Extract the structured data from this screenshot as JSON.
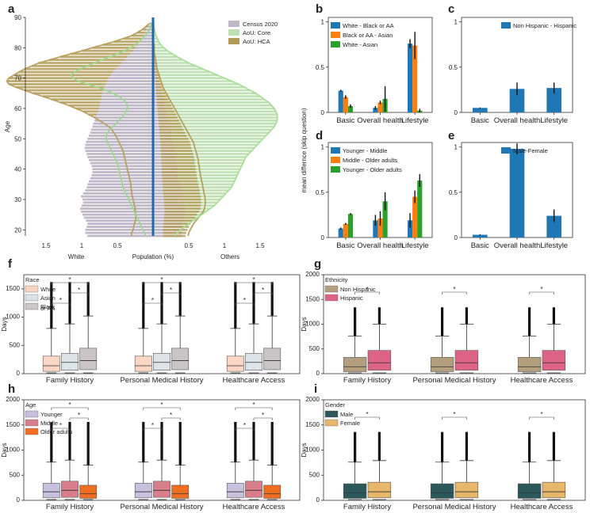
{
  "colors": {
    "census": "#c0b8c8",
    "core": "#bfe0b4",
    "hca": "#b39b55",
    "divider": "#2366b0",
    "blue": "#1f77b4",
    "orange": "#ff7f0e",
    "green": "#2ca02c",
    "race": [
      "#fbd6c4",
      "#dde3e6",
      "#c9c4c6"
    ],
    "ethnicity": [
      "#b39e7d",
      "#dd6487"
    ],
    "age": [
      "#c8c1de",
      "#d97f8c",
      "#ee6f22"
    ],
    "gender": [
      "#2c585c",
      "#e8b86a"
    ]
  },
  "panel_labels": [
    "a",
    "b",
    "c",
    "d",
    "e",
    "f",
    "g",
    "h",
    "i"
  ],
  "chart_data": [
    {
      "id": "a",
      "type": "bar",
      "orientation": "horizontal-pyramid",
      "ylabel": "Age",
      "xlabel": "Population (%)",
      "left_label": "White",
      "right_label": "Others",
      "yticks": [
        20,
        30,
        40,
        50,
        60,
        70,
        80,
        90
      ],
      "ylim": [
        18,
        90
      ],
      "xticks": [
        "1.5",
        "1",
        "0.5",
        "0.5",
        "1",
        "1.5"
      ],
      "xtick_values": [
        -1.5,
        -1,
        -0.5,
        0.5,
        1,
        1.5
      ],
      "xlim": [
        -2.1,
        2.1
      ],
      "legend": [
        "Census 2020",
        "AoU: Core",
        "AoU: HCA"
      ],
      "ages": [
        18,
        19,
        20,
        21,
        22,
        23,
        24,
        25,
        26,
        27,
        28,
        29,
        30,
        31,
        32,
        33,
        34,
        35,
        36,
        37,
        38,
        39,
        40,
        41,
        42,
        43,
        44,
        45,
        46,
        47,
        48,
        49,
        50,
        51,
        52,
        53,
        54,
        55,
        56,
        57,
        58,
        59,
        60,
        61,
        62,
        63,
        64,
        65,
        66,
        67,
        68,
        69,
        70,
        71,
        72,
        73,
        74,
        75,
        76,
        77,
        78,
        79,
        80,
        81,
        82,
        83,
        84,
        85,
        86,
        87,
        88
      ],
      "census_left": [
        0.92,
        0.95,
        0.95,
        0.93,
        0.92,
        0.94,
        0.97,
        0.99,
        1.01,
        1.02,
        1.0,
        0.98,
        0.99,
        1.01,
        0.98,
        0.95,
        0.93,
        0.92,
        0.9,
        0.88,
        0.86,
        0.85,
        0.85,
        0.86,
        0.88,
        0.9,
        0.92,
        0.93,
        0.95,
        0.96,
        0.95,
        0.94,
        0.92,
        0.9,
        0.88,
        0.87,
        0.85,
        0.84,
        0.82,
        0.8,
        0.79,
        0.77,
        0.76,
        0.75,
        0.74,
        0.73,
        0.72,
        0.71,
        0.7,
        0.68,
        0.66,
        0.64,
        0.62,
        0.59,
        0.56,
        0.52,
        0.48,
        0.44,
        0.4,
        0.36,
        0.32,
        0.28,
        0.25,
        0.22,
        0.19,
        0.16,
        0.13,
        0.11,
        0.09,
        0.07,
        0.05
      ],
      "census_right": [
        0.4,
        0.4,
        0.4,
        0.41,
        0.42,
        0.43,
        0.44,
        0.45,
        0.46,
        0.46,
        0.45,
        0.44,
        0.43,
        0.42,
        0.41,
        0.4,
        0.39,
        0.38,
        0.37,
        0.36,
        0.35,
        0.34,
        0.34,
        0.34,
        0.33,
        0.33,
        0.32,
        0.32,
        0.31,
        0.3,
        0.3,
        0.29,
        0.28,
        0.27,
        0.26,
        0.25,
        0.24,
        0.23,
        0.22,
        0.21,
        0.2,
        0.19,
        0.18,
        0.17,
        0.16,
        0.15,
        0.14,
        0.13,
        0.12,
        0.11,
        0.1,
        0.09,
        0.08,
        0.07,
        0.06,
        0.05,
        0.05,
        0.04,
        0.04,
        0.03,
        0.03,
        0.02,
        0.02,
        0.02,
        0.01,
        0.01,
        0.01,
        0.01,
        0.01,
        0.0,
        0.0
      ],
      "hca_left": [
        0.3,
        0.3,
        0.28,
        0.27,
        0.26,
        0.25,
        0.24,
        0.24,
        0.25,
        0.25,
        0.26,
        0.27,
        0.28,
        0.29,
        0.3,
        0.3,
        0.31,
        0.31,
        0.32,
        0.33,
        0.34,
        0.35,
        0.36,
        0.37,
        0.38,
        0.39,
        0.4,
        0.41,
        0.42,
        0.44,
        0.46,
        0.48,
        0.5,
        0.52,
        0.55,
        0.58,
        0.62,
        0.68,
        0.75,
        0.82,
        0.9,
        0.98,
        1.08,
        1.18,
        1.3,
        1.42,
        1.55,
        1.68,
        1.8,
        1.92,
        2.02,
        2.05,
        2.02,
        1.95,
        1.88,
        1.8,
        1.7,
        1.6,
        1.45,
        1.3,
        1.15,
        1.0,
        0.85,
        0.7,
        0.55,
        0.42,
        0.3,
        0.22,
        0.15,
        0.1,
        0.05
      ],
      "hca_right": [
        0.35,
        0.36,
        0.38,
        0.4,
        0.42,
        0.45,
        0.48,
        0.51,
        0.54,
        0.56,
        0.57,
        0.58,
        0.58,
        0.58,
        0.57,
        0.57,
        0.56,
        0.56,
        0.55,
        0.55,
        0.54,
        0.54,
        0.53,
        0.53,
        0.52,
        0.52,
        0.51,
        0.5,
        0.49,
        0.48,
        0.47,
        0.46,
        0.44,
        0.42,
        0.4,
        0.38,
        0.36,
        0.34,
        0.32,
        0.3,
        0.28,
        0.26,
        0.24,
        0.22,
        0.2,
        0.18,
        0.16,
        0.14,
        0.12,
        0.1,
        0.09,
        0.08,
        0.07,
        0.06,
        0.05,
        0.04,
        0.03,
        0.03,
        0.02,
        0.02,
        0.01,
        0.01,
        0.01,
        0.01,
        0.0,
        0.0,
        0.0,
        0.0,
        0.0,
        0.0,
        0.0
      ],
      "core_left": [
        0.1,
        0.12,
        0.14,
        0.16,
        0.18,
        0.2,
        0.22,
        0.24,
        0.26,
        0.28,
        0.3,
        0.32,
        0.34,
        0.36,
        0.38,
        0.4,
        0.42,
        0.43,
        0.44,
        0.45,
        0.46,
        0.47,
        0.48,
        0.49,
        0.5,
        0.52,
        0.54,
        0.56,
        0.58,
        0.6,
        0.62,
        0.64,
        0.66,
        0.66,
        0.64,
        0.6,
        0.56,
        0.52,
        0.48,
        0.44,
        0.4,
        0.38,
        0.36,
        0.36,
        0.38,
        0.42,
        0.48,
        0.56,
        0.66,
        0.78,
        0.92,
        1.05,
        1.12,
        1.15,
        1.1,
        1.02,
        0.92,
        0.82,
        0.72,
        0.6,
        0.5,
        0.4,
        0.32,
        0.25,
        0.2,
        0.15,
        0.11,
        0.08,
        0.05,
        0.03,
        0.02
      ],
      "core_right": [
        0.3,
        0.34,
        0.38,
        0.44,
        0.5,
        0.56,
        0.62,
        0.68,
        0.74,
        0.8,
        0.86,
        0.9,
        0.94,
        0.98,
        1.02,
        1.06,
        1.1,
        1.12,
        1.14,
        1.16,
        1.18,
        1.2,
        1.22,
        1.24,
        1.26,
        1.28,
        1.3,
        1.34,
        1.38,
        1.42,
        1.46,
        1.5,
        1.54,
        1.58,
        1.62,
        1.66,
        1.7,
        1.72,
        1.74,
        1.74,
        1.74,
        1.72,
        1.7,
        1.66,
        1.62,
        1.56,
        1.5,
        1.44,
        1.36,
        1.28,
        1.2,
        1.1,
        1.0,
        0.9,
        0.8,
        0.7,
        0.6,
        0.5,
        0.42,
        0.34,
        0.27,
        0.2,
        0.15,
        0.11,
        0.08,
        0.06,
        0.04,
        0.03,
        0.02,
        0.01,
        0.01
      ]
    },
    {
      "id": "b",
      "type": "bar",
      "categories": [
        "Basic",
        "Overall health",
        "Lifestyle"
      ],
      "ylim": [
        0,
        1.05
      ],
      "yticks": [
        "0",
        "0.5",
        "1"
      ],
      "series": [
        {
          "name": "White - Black or AA",
          "color": "blue",
          "values": [
            0.24,
            0.05,
            0.76
          ],
          "err": [
            0.01,
            0.02,
            0.05
          ]
        },
        {
          "name": "Black or AA - Asian",
          "color": "orange",
          "values": [
            0.17,
            0.11,
            0.74
          ],
          "err": [
            0.02,
            0.02,
            0.15
          ]
        },
        {
          "name": "White - Asian",
          "color": "green",
          "values": [
            0.07,
            0.15,
            0.02
          ],
          "err": [
            0.02,
            0.14,
            0.02
          ]
        }
      ]
    },
    {
      "id": "c",
      "type": "bar",
      "categories": [
        "Basic",
        "Overall health",
        "Lifestyle"
      ],
      "ylim": [
        0,
        1.05
      ],
      "yticks": [
        "0",
        "0.5",
        "1"
      ],
      "series": [
        {
          "name": "Non Hispanic - Hispanic",
          "color": "blue",
          "values": [
            0.05,
            0.26,
            0.27
          ],
          "err": [
            0.005,
            0.07,
            0.06
          ]
        }
      ]
    },
    {
      "id": "d",
      "type": "bar",
      "categories": [
        "Basic",
        "Overall health",
        "Lifestyle"
      ],
      "ylim": [
        0,
        1.05
      ],
      "yticks": [
        "0",
        "0.5",
        "1"
      ],
      "series": [
        {
          "name": "Younger - Middle",
          "color": "blue",
          "values": [
            0.1,
            0.19,
            0.19
          ],
          "err": [
            0.01,
            0.06,
            0.08
          ]
        },
        {
          "name": "Middle - Older adults",
          "color": "orange",
          "values": [
            0.15,
            0.21,
            0.45
          ],
          "err": [
            0.01,
            0.08,
            0.07
          ]
        },
        {
          "name": "Younger - Older adults",
          "color": "green",
          "values": [
            0.26,
            0.4,
            0.63
          ],
          "err": [
            0.01,
            0.1,
            0.07
          ]
        }
      ]
    },
    {
      "id": "e",
      "type": "bar",
      "categories": [
        "Basic",
        "Overall health",
        "Lifestyle"
      ],
      "ylim": [
        0,
        1.05
      ],
      "yticks": [
        "0",
        "0.5",
        "1"
      ],
      "series": [
        {
          "name": "Male-Female",
          "color": "blue",
          "values": [
            0.03,
            0.98,
            0.24
          ],
          "err": [
            0.005,
            0.06,
            0.07
          ]
        }
      ]
    }
  ],
  "shared_ylabel": "mean differnce (skip question)",
  "box_panels": [
    {
      "id": "f",
      "legend_title": "Race",
      "groups": [
        "White",
        "Asian",
        "Black\nor AA"
      ],
      "group_labels": [
        "White",
        "Asian",
        "Black",
        "or AA"
      ],
      "colorkey": "race",
      "ylabel": "Days",
      "yticks": [
        0,
        500,
        1000,
        1500
      ],
      "ymax": 1750,
      "categories": [
        "Family History",
        "Personal Medical History",
        "Healthcare Access"
      ],
      "stats": [
        [
          40,
          140,
          310,
          800,
          1620
        ],
        [
          60,
          200,
          360,
          880,
          1620
        ],
        [
          70,
          230,
          450,
          1020,
          1620
        ]
      ],
      "sig_marker": "*",
      "brackets": [
        [
          0,
          1
        ],
        [
          1,
          2
        ],
        [
          0,
          2
        ]
      ]
    },
    {
      "id": "g",
      "legend_title": "Ethnicity",
      "groups": [
        "Non Hispanic",
        "Hispanic"
      ],
      "group_labels": [
        "Non Hispanic",
        "Hispanic"
      ],
      "colorkey": "ethnicity",
      "ylabel": "Days",
      "yticks": [
        0,
        500,
        1000,
        1500,
        2000
      ],
      "ymax": 2000,
      "categories": [
        "Family History",
        "Personal Medical History",
        "Healthcare Access"
      ],
      "stats": [
        [
          40,
          140,
          330,
          760,
          1340
        ],
        [
          70,
          220,
          470,
          1000,
          1340
        ]
      ],
      "sig_marker": "*",
      "brackets": [
        [
          0,
          1
        ]
      ]
    },
    {
      "id": "h",
      "legend_title": "Age",
      "groups": [
        "Younger",
        "Middle",
        "Older adults"
      ],
      "group_labels": [
        "Younger",
        "Middle",
        "Older adults"
      ],
      "colorkey": "age",
      "ylabel": "Days",
      "yticks": [
        0,
        500,
        1000,
        1500,
        2000
      ],
      "ymax": 2000,
      "categories": [
        "Family History",
        "Personal Medical History",
        "Healthcare Access"
      ],
      "stats": [
        [
          50,
          170,
          340,
          760,
          1560
        ],
        [
          60,
          200,
          380,
          800,
          1560
        ],
        [
          40,
          130,
          300,
          700,
          1560
        ]
      ],
      "sig_marker": "*",
      "brackets": [
        [
          0,
          1
        ],
        [
          1,
          2
        ],
        [
          0,
          2
        ]
      ]
    },
    {
      "id": "i",
      "legend_title": "Gender",
      "groups": [
        "Male",
        "Female"
      ],
      "group_labels": [
        "Male",
        "Female"
      ],
      "colorkey": "gender",
      "ylabel": "Days",
      "yticks": [
        0,
        500,
        1000,
        1500,
        2000
      ],
      "ymax": 2000,
      "categories": [
        "Family History",
        "Personal Medical History",
        "Healthcare Access"
      ],
      "stats": [
        [
          40,
          150,
          330,
          760,
          1360
        ],
        [
          50,
          170,
          360,
          790,
          1360
        ]
      ],
      "sig_marker": "*",
      "brackets": [
        [
          0,
          1
        ]
      ]
    }
  ]
}
